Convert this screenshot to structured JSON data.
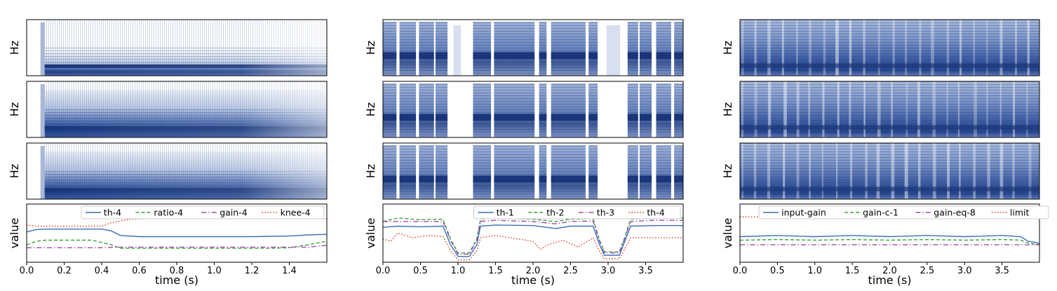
{
  "chart_data": [
    {
      "type": "line",
      "spectrogram_ylabel": "Hz",
      "xlabel": "time (s)",
      "ylabel": "value",
      "xlim": [
        0,
        1.6
      ],
      "xticks": [
        "0.0",
        "0.2",
        "0.4",
        "0.6",
        "0.8",
        "1.0",
        "1.2",
        "1.4"
      ],
      "legend_position": "top-right",
      "spectrogram_style": "sustained-tone",
      "series": [
        {
          "name": "th-4",
          "color": "#3b6fbf",
          "dash": "solid",
          "x": [
            0,
            0.05,
            0.1,
            0.4,
            0.45,
            0.5,
            0.6,
            1.2,
            1.4,
            1.5,
            1.6
          ],
          "y": [
            0.52,
            0.56,
            0.57,
            0.57,
            0.54,
            0.46,
            0.44,
            0.44,
            0.45,
            0.47,
            0.48
          ]
        },
        {
          "name": "ratio-4",
          "color": "#3aa337",
          "dash": "dashed",
          "x": [
            0,
            0.05,
            0.1,
            0.35,
            0.45,
            0.5,
            0.6,
            1.3,
            1.4,
            1.5,
            1.6
          ],
          "y": [
            0.3,
            0.36,
            0.38,
            0.38,
            0.3,
            0.24,
            0.24,
            0.24,
            0.25,
            0.3,
            0.36
          ]
        },
        {
          "name": "gain-4",
          "color": "#a04aa8",
          "dash": "dashdot",
          "x": [
            0,
            0.1,
            0.4,
            0.5,
            1.2,
            1.5,
            1.6
          ],
          "y": [
            0.25,
            0.25,
            0.25,
            0.26,
            0.26,
            0.26,
            0.29
          ]
        },
        {
          "name": "knee-4",
          "color": "#cf3e1c",
          "dash": "dotted",
          "x": [
            0,
            0.05,
            0.1,
            0.4,
            0.45,
            0.55,
            0.65,
            1.6
          ],
          "y": [
            0.64,
            0.62,
            0.62,
            0.62,
            0.68,
            0.74,
            0.75,
            0.75
          ]
        }
      ]
    },
    {
      "type": "line",
      "spectrogram_ylabel": "Hz",
      "xlabel": "time (s)",
      "ylabel": "value",
      "xlim": [
        0,
        4.0
      ],
      "xticks": [
        "0.0",
        "0.5",
        "1.0",
        "1.5",
        "2.0",
        "2.5",
        "3.0",
        "3.5"
      ],
      "legend_position": "top-right",
      "spectrogram_style": "speech-with-gaps",
      "series": [
        {
          "name": "th-1",
          "color": "#3b6fbf",
          "dash": "solid",
          "x": [
            0,
            0.2,
            0.5,
            0.8,
            0.9,
            1.0,
            1.15,
            1.25,
            1.3,
            1.5,
            2.0,
            2.3,
            2.5,
            2.8,
            2.88,
            2.95,
            3.15,
            3.22,
            3.3,
            3.6,
            4.0
          ],
          "y": [
            0.6,
            0.62,
            0.61,
            0.62,
            0.3,
            0.1,
            0.1,
            0.3,
            0.62,
            0.64,
            0.63,
            0.58,
            0.62,
            0.62,
            0.32,
            0.12,
            0.12,
            0.35,
            0.62,
            0.63,
            0.63
          ]
        },
        {
          "name": "th-2",
          "color": "#3aa337",
          "dash": "dashed",
          "x": [
            0,
            0.2,
            0.5,
            0.8,
            0.9,
            1.0,
            1.15,
            1.25,
            1.3,
            1.5,
            2.0,
            2.3,
            2.5,
            2.8,
            2.88,
            2.95,
            3.15,
            3.22,
            3.3,
            3.6,
            4.0
          ],
          "y": [
            0.7,
            0.76,
            0.73,
            0.74,
            0.4,
            0.16,
            0.16,
            0.4,
            0.74,
            0.76,
            0.74,
            0.7,
            0.74,
            0.75,
            0.4,
            0.18,
            0.18,
            0.42,
            0.74,
            0.76,
            0.76
          ]
        },
        {
          "name": "th-3",
          "color": "#a04aa8",
          "dash": "dashdot",
          "x": [
            0,
            0.2,
            0.5,
            0.8,
            0.9,
            1.0,
            1.15,
            1.25,
            1.3,
            1.5,
            2.0,
            2.3,
            2.5,
            2.8,
            2.88,
            2.95,
            3.15,
            3.22,
            3.3,
            3.6,
            4.0
          ],
          "y": [
            0.7,
            0.7,
            0.7,
            0.7,
            0.38,
            0.14,
            0.14,
            0.38,
            0.7,
            0.72,
            0.7,
            0.66,
            0.7,
            0.71,
            0.38,
            0.16,
            0.16,
            0.4,
            0.7,
            0.72,
            0.72
          ]
        },
        {
          "name": "th-4",
          "color": "#cf3e1c",
          "dash": "dotted",
          "x": [
            0,
            0.1,
            0.2,
            0.4,
            0.6,
            0.8,
            0.9,
            1.0,
            1.15,
            1.25,
            1.3,
            1.5,
            1.8,
            2.0,
            2.1,
            2.2,
            2.4,
            2.6,
            2.8,
            2.88,
            2.95,
            3.15,
            3.22,
            3.3,
            3.6,
            4.0
          ],
          "y": [
            0.4,
            0.36,
            0.5,
            0.42,
            0.46,
            0.44,
            0.2,
            0.04,
            0.04,
            0.2,
            0.42,
            0.46,
            0.4,
            0.36,
            0.22,
            0.3,
            0.38,
            0.26,
            0.42,
            0.2,
            0.06,
            0.06,
            0.22,
            0.42,
            0.42,
            0.42
          ]
        }
      ]
    },
    {
      "type": "line",
      "spectrogram_ylabel": "Hz",
      "xlabel": "time (s)",
      "ylabel": "value",
      "xlim": [
        0,
        4.0
      ],
      "xticks": [
        "0.0",
        "0.5",
        "1.0",
        "1.5",
        "2.0",
        "2.5",
        "3.0",
        "3.5"
      ],
      "legend_position": "top",
      "spectrogram_style": "dense-music",
      "series": [
        {
          "name": "input-gain",
          "color": "#3b6fbf",
          "dash": "solid",
          "x": [
            0,
            0.5,
            1.0,
            1.5,
            2.0,
            2.5,
            3.0,
            3.5,
            3.75,
            3.85,
            3.95,
            4.0
          ],
          "y": [
            0.44,
            0.46,
            0.44,
            0.46,
            0.44,
            0.46,
            0.44,
            0.46,
            0.44,
            0.36,
            0.34,
            0.32
          ]
        },
        {
          "name": "gain-c-1",
          "color": "#3aa337",
          "dash": "dashed",
          "x": [
            0,
            0.5,
            1.0,
            1.5,
            2.0,
            2.5,
            3.0,
            3.5,
            3.75,
            3.85,
            3.95,
            4.0
          ],
          "y": [
            0.38,
            0.39,
            0.38,
            0.39,
            0.38,
            0.39,
            0.38,
            0.39,
            0.38,
            0.33,
            0.31,
            0.3
          ]
        },
        {
          "name": "gain-eq-8",
          "color": "#a04aa8",
          "dash": "dashdot",
          "x": [
            0,
            0.5,
            1.0,
            1.5,
            2.0,
            2.5,
            3.0,
            3.5,
            4.0
          ],
          "y": [
            0.3,
            0.3,
            0.3,
            0.3,
            0.3,
            0.3,
            0.3,
            0.3,
            0.3
          ]
        },
        {
          "name": "limit",
          "color": "#cf3e1c",
          "dash": "dotted",
          "x": [
            0,
            4.0
          ],
          "y": [
            0.78,
            0.78
          ]
        }
      ]
    }
  ]
}
